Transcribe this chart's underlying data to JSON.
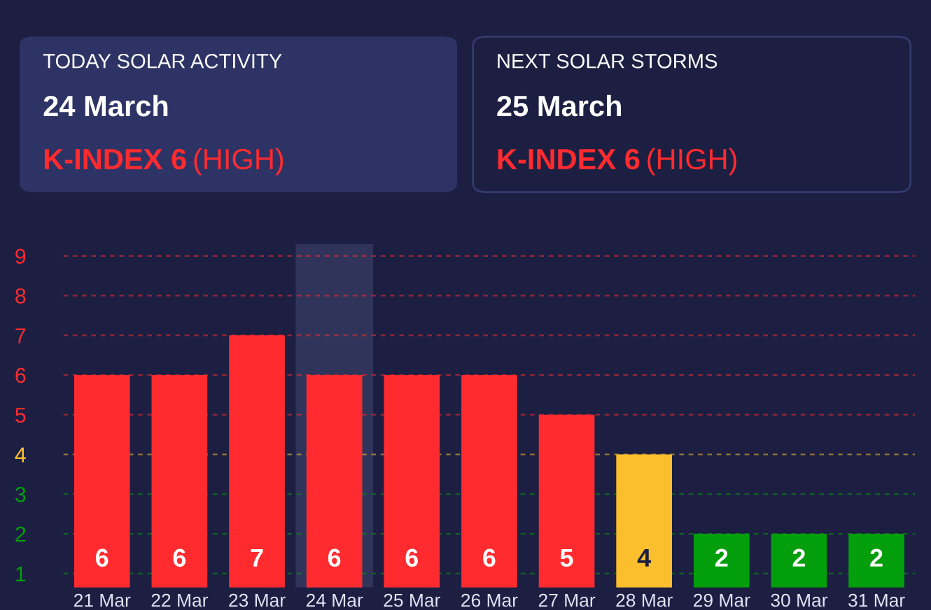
{
  "chart_data": {
    "type": "bar",
    "categories": [
      "21 Mar",
      "22 Mar",
      "23 Mar",
      "24 Mar",
      "25 Mar",
      "26 Mar",
      "27 Mar",
      "28 Mar",
      "29 Mar",
      "30 Mar",
      "31 Mar"
    ],
    "values": [
      6,
      6,
      7,
      6,
      6,
      6,
      5,
      4,
      2,
      2,
      2
    ],
    "colors": [
      "#ff2b2f",
      "#ff2b2f",
      "#ff2b2f",
      "#ff2b2f",
      "#ff2b2f",
      "#ff2b2f",
      "#ff2b2f",
      "#fbbf2d",
      "#039e0b",
      "#039e0b",
      "#039e0b"
    ],
    "data_labels": true,
    "ylim": [
      0.65,
      9.3
    ],
    "yticks": [
      1,
      2,
      3,
      4,
      5,
      6,
      7,
      8,
      9
    ],
    "grid": false,
    "legend": false,
    "ref_lines": [
      {
        "axis": "y",
        "value": 1,
        "label": null,
        "color": "#039e0b",
        "line_style": "dashed"
      },
      {
        "axis": "y",
        "value": 2,
        "label": null,
        "color": "#039e0b",
        "line_style": "dashed"
      },
      {
        "axis": "y",
        "value": 3,
        "label": null,
        "color": "#039e0b",
        "line_style": "dashed"
      },
      {
        "axis": "y",
        "value": 4,
        "label": null,
        "color": "#fbbf2d",
        "line_style": "dashed"
      },
      {
        "axis": "y",
        "value": 5,
        "label": null,
        "color": "#ff2b2f",
        "line_style": "dashed"
      },
      {
        "axis": "y",
        "value": 6,
        "label": null,
        "color": "#ff2b2f",
        "line_style": "dashed"
      },
      {
        "axis": "y",
        "value": 7,
        "label": null,
        "color": "#ff2b2f",
        "line_style": "dashed"
      },
      {
        "axis": "y",
        "value": 8,
        "label": null,
        "color": "#ff2b2f",
        "line_style": "dashed"
      },
      {
        "axis": "y",
        "value": 9,
        "label": null,
        "color": "#ff2b2f",
        "line_style": "dashed"
      }
    ],
    "bands": [
      {
        "axis": "x",
        "from": "24 Mar",
        "to": "24 Mar",
        "label": null,
        "color": "#30345a"
      }
    ],
    "annotations": [
      "TODAY SOLAR ACTIVITY",
      "24 March",
      "K-INDEX 6",
      "(HIGH)",
      "NEXT SOLAR STORMS",
      "25 March",
      "K-INDEX 6",
      "(HIGH)"
    ]
  }
}
